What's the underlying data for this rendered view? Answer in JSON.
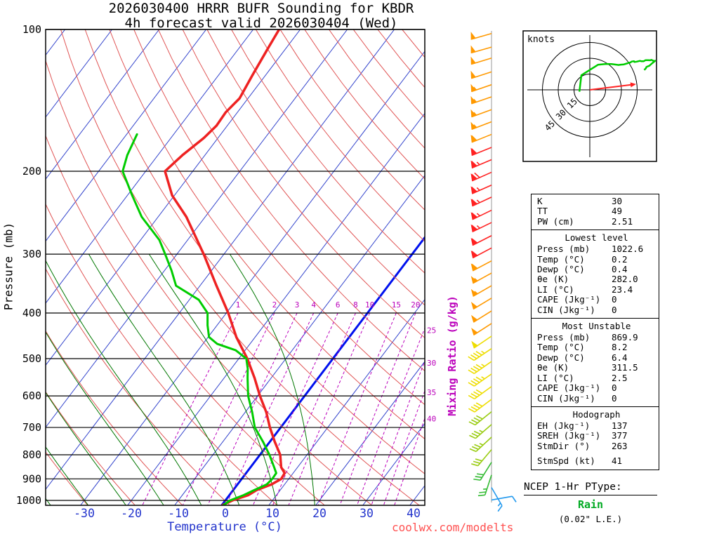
{
  "title": {
    "line1": "2026030400 HRRR BUFR Sounding for KBDR",
    "line2": "4h forecast valid 2026030404 (Wed)"
  },
  "axes": {
    "pressure_label": "Pressure (mb)",
    "temperature_label": "Temperature (°C)",
    "mixing_ratio_label": "Mixing Ratio (g/kg)"
  },
  "watermark_text": "coolwx.com/modelts",
  "colors": {
    "isotherm": "#3344cc",
    "isotherm_zero": "#0011ee",
    "dry_adiabat": "#e05555",
    "moist_adiabat": "#007700",
    "mixing_ratio": "#bb00bb",
    "temperature": "#ee2222",
    "dewpoint": "#00cc00",
    "temp_axis": "#2233cc",
    "watermark": "#ff5050",
    "ptype_value": "#00aa22",
    "hodo_trace": "#00cc00",
    "storm_arrow": "#ff2222"
  },
  "chart_data": {
    "type": "line",
    "subtype": "skewt-logp-sounding",
    "pressure_ticks_mb": [
      100,
      200,
      300,
      400,
      500,
      600,
      700,
      800,
      900,
      1000
    ],
    "temperature_ticks_c": [
      -30,
      -20,
      -10,
      0,
      10,
      20,
      30,
      40
    ],
    "mixing_ratio_labels": [
      1,
      2,
      3,
      4,
      6,
      8,
      10,
      15,
      20,
      25,
      30,
      35,
      40
    ],
    "temperature_profile_p_c": [
      [
        1022.6,
        0.2
      ],
      [
        1000,
        1.5
      ],
      [
        975,
        4.0
      ],
      [
        950,
        5.0
      ],
      [
        925,
        7.2
      ],
      [
        900,
        8.4
      ],
      [
        875,
        8.2
      ],
      [
        850,
        6.5
      ],
      [
        800,
        4.3
      ],
      [
        750,
        1.0
      ],
      [
        700,
        -2.3
      ],
      [
        650,
        -5.5
      ],
      [
        600,
        -9.5
      ],
      [
        550,
        -13.5
      ],
      [
        500,
        -18.2
      ],
      [
        450,
        -24.0
      ],
      [
        400,
        -29.6
      ],
      [
        350,
        -36.5
      ],
      [
        300,
        -44.3
      ],
      [
        250,
        -54.0
      ],
      [
        225,
        -60.5
      ],
      [
        200,
        -65.9
      ],
      [
        185,
        -64.8
      ],
      [
        170,
        -63.0
      ],
      [
        160,
        -62.3
      ],
      [
        150,
        -62.5
      ],
      [
        140,
        -61.8
      ],
      [
        125,
        -62.8
      ],
      [
        110,
        -63.8
      ],
      [
        100,
        -64.5
      ]
    ],
    "dewpoint_profile_p_c": [
      [
        1022.6,
        0.4
      ],
      [
        1000,
        1.0
      ],
      [
        975,
        3.0
      ],
      [
        950,
        4.5
      ],
      [
        925,
        6.2
      ],
      [
        900,
        6.5
      ],
      [
        875,
        6.4
      ],
      [
        850,
        5.0
      ],
      [
        800,
        2.0
      ],
      [
        750,
        -1.5
      ],
      [
        700,
        -5.5
      ],
      [
        650,
        -8.5
      ],
      [
        600,
        -12.0
      ],
      [
        550,
        -15.0
      ],
      [
        525,
        -16.5
      ],
      [
        500,
        -18.4
      ],
      [
        480,
        -22.0
      ],
      [
        465,
        -27.0
      ],
      [
        450,
        -29.8
      ],
      [
        425,
        -32.0
      ],
      [
        400,
        -34.0
      ],
      [
        375,
        -38.0
      ],
      [
        350,
        -45.1
      ],
      [
        325,
        -48.5
      ],
      [
        300,
        -52.5
      ],
      [
        280,
        -56.0
      ],
      [
        250,
        -63.5
      ],
      [
        225,
        -69.0
      ],
      [
        200,
        -74.9
      ],
      [
        185,
        -76.5
      ],
      [
        167,
        -77.8
      ]
    ],
    "wind_profile": [
      [
        102,
        254,
        50,
        "#ff9900"
      ],
      [
        109,
        254,
        50,
        "#ff9900"
      ],
      [
        115,
        253,
        51,
        "#ff9900"
      ],
      [
        123,
        252,
        52,
        "#ff9900"
      ],
      [
        131,
        251,
        53,
        "#ff9900"
      ],
      [
        139,
        251,
        54,
        "#ff9900"
      ],
      [
        148,
        250,
        55,
        "#ff9900"
      ],
      [
        157,
        249,
        57,
        "#ff9900"
      ],
      [
        167,
        248,
        58,
        "#ff9900"
      ],
      [
        178,
        248,
        61,
        "#ff2222"
      ],
      [
        189,
        247,
        64,
        "#ff2222"
      ],
      [
        201,
        246,
        68,
        "#ff2222"
      ],
      [
        214,
        246,
        67,
        "#ff2222"
      ],
      [
        227,
        245,
        66,
        "#ff2222"
      ],
      [
        242,
        244,
        65,
        "#ff2222"
      ],
      [
        257,
        244,
        64,
        "#ff2222"
      ],
      [
        274,
        243,
        62,
        "#ff2222"
      ],
      [
        291,
        242,
        60,
        "#ff2222"
      ],
      [
        310,
        242,
        58,
        "#ff9900"
      ],
      [
        329,
        241,
        56,
        "#ff9900"
      ],
      [
        350,
        240,
        55,
        "#ff9900"
      ],
      [
        372,
        239,
        52,
        "#ff9900"
      ],
      [
        396,
        238,
        50,
        "#ff9900"
      ],
      [
        421,
        237,
        50,
        "#ff9900"
      ],
      [
        448,
        236,
        48,
        "#eedd00"
      ],
      [
        476,
        236,
        46,
        "#eedd00"
      ],
      [
        507,
        235,
        45,
        "#eedd00"
      ],
      [
        539,
        235,
        44,
        "#eedd00"
      ],
      [
        573,
        234,
        42,
        "#eedd00"
      ],
      [
        610,
        233,
        40,
        "#eedd00"
      ],
      [
        648,
        231,
        38,
        "#99cc11"
      ],
      [
        690,
        229,
        36,
        "#99cc11"
      ],
      [
        734,
        227,
        35,
        "#99cc11"
      ],
      [
        780,
        220,
        32,
        "#99cc11"
      ],
      [
        830,
        212,
        29,
        "#33bb33"
      ],
      [
        883,
        198,
        25,
        "#33bb33"
      ],
      [
        939,
        150,
        16,
        "#2299ee"
      ],
      [
        998,
        80,
        10,
        "#2299ee"
      ]
    ],
    "hodograph": {
      "units_label": "knots",
      "rings_kt": [
        15,
        30,
        45
      ],
      "storm_dir_deg": 263,
      "storm_speed_kt": 41
    }
  },
  "stats": {
    "indices": {
      "rows": [
        [
          "K",
          "30"
        ],
        [
          "TT",
          "49"
        ],
        [
          "PW (cm)",
          "2.51"
        ]
      ]
    },
    "lowest": {
      "header": "Lowest level",
      "rows": [
        [
          "Press (mb)",
          "1022.6"
        ],
        [
          "Temp (°C)",
          "0.2"
        ],
        [
          "Dewp (°C)",
          "0.4"
        ],
        [
          "θe (K)",
          "282.0"
        ],
        [
          "LI (°C)",
          "23.4"
        ],
        [
          "CAPE (Jkg⁻¹)",
          "0"
        ],
        [
          "CIN (Jkg⁻¹)",
          "0"
        ]
      ]
    },
    "most_unstable": {
      "header": "Most Unstable",
      "rows": [
        [
          "Press (mb)",
          "869.9"
        ],
        [
          "Temp (°C)",
          "8.2"
        ],
        [
          "Dewp (°C)",
          "6.4"
        ],
        [
          "θe (K)",
          "311.5"
        ],
        [
          "LI (°C)",
          "2.5"
        ],
        [
          "CAPE (Jkg⁻¹)",
          "0"
        ],
        [
          "CIN (Jkg⁻¹)",
          "0"
        ]
      ]
    },
    "hodograph": {
      "header": "Hodograph",
      "rows": [
        [
          "EH (Jkg⁻¹)",
          "137"
        ],
        [
          "SREH (Jkg⁻¹)",
          "377"
        ],
        [
          "StmDir (°)",
          "263"
        ],
        [
          "StmSpd (kt)",
          "41"
        ]
      ]
    }
  },
  "ptype": {
    "title": "NCEP 1-Hr PType:",
    "value": "Rain",
    "detail": "(0.02\" L.E.)"
  }
}
